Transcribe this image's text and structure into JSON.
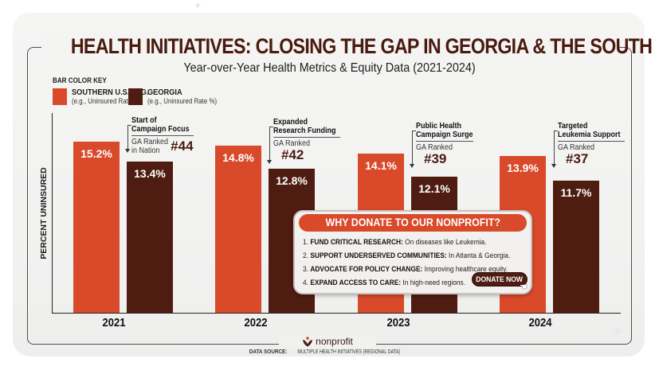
{
  "title": "HEALTH INITIATIVES: CLOSING THE GAP IN GEORGIA & THE SOUTH",
  "subtitle": "Year-over-Year Health Metrics & Equity Data (2021-2024)",
  "key": {
    "title": "BAR COLOR KEY",
    "items": [
      {
        "label": "SOUTHERN U.S. AVG.",
        "sub": "(e.g., Uninsured Rate %)",
        "color": "#d94a2b"
      },
      {
        "label": "GEORGIA",
        "sub": "(e.g., Uninsured Rate %)",
        "color": "#4e1c10"
      }
    ]
  },
  "chart_data": {
    "type": "bar",
    "title": "HEALTH INITIATIVES: CLOSING THE GAP IN GEORGIA & THE SOUTH",
    "subtitle": "Year-over-Year Health Metrics & Equity Data (2021-2024)",
    "xlabel": "",
    "ylabel": "PERCENT UNINSURED",
    "categories": [
      "2021",
      "2022",
      "2023",
      "2024"
    ],
    "series": [
      {
        "name": "SOUTHERN U.S. AVG.",
        "color": "#d94a2b",
        "values": [
          15.2,
          14.8,
          14.1,
          13.9
        ],
        "labels": [
          "15.2%",
          "14.8%",
          "14.1%",
          "13.9%"
        ]
      },
      {
        "name": "GEORGIA",
        "color": "#4e1c10",
        "values": [
          13.4,
          12.8,
          12.1,
          11.7
        ],
        "labels": [
          "13.4%",
          "12.8%",
          "12.1%",
          "11.7%"
        ]
      }
    ],
    "legend": "top-left",
    "grid": false,
    "annotations": [
      {
        "title": [
          "Start of",
          "Campaign Focus"
        ],
        "sub": [
          "GA Ranked",
          "in Nation"
        ],
        "rank": "#44"
      },
      {
        "title": [
          "Expanded",
          "Research Funding"
        ],
        "sub": [
          "GA Ranked"
        ],
        "rank": "#42"
      },
      {
        "title": [
          "Public Health",
          "Campaign Surge"
        ],
        "sub": [
          "GA Ranked"
        ],
        "rank": "#39"
      },
      {
        "title": [
          "Targeted",
          "Leukemia Support"
        ],
        "sub": [
          "GA Ranked"
        ],
        "rank": "#37"
      }
    ]
  },
  "donate": {
    "header": "WHY DONATE TO OUR NONPROFIT?",
    "items": [
      {
        "num": "1.",
        "bold": "FUND CRITICAL RESEARCH:",
        "text": "On diseases like Leukemia."
      },
      {
        "num": "2.",
        "bold": "SUPPORT UNDERSERVED COMMUNITIES:",
        "text": "In Atlanta & Georgia."
      },
      {
        "num": "3.",
        "bold": "ADVOCATE FOR POLICY CHANGE:",
        "text": "Improving healthcare equity."
      },
      {
        "num": "4.",
        "bold": "EXPAND ACCESS TO CARE:",
        "text": "In high-need regions."
      }
    ],
    "button": "DONATE NOW"
  },
  "footer": {
    "logo_text": "nonprofit",
    "source_label": "DATA SOURCE:",
    "source_text": "MULTIPLE HEALTH INITIATIVES (REGIONAL DATA)"
  }
}
